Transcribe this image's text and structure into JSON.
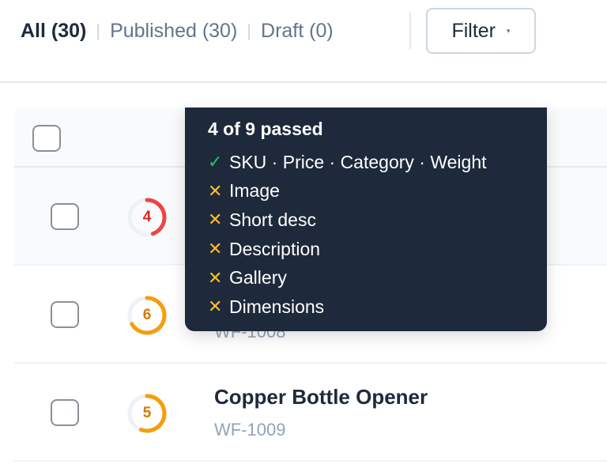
{
  "tabs": [
    {
      "label": "All (30)",
      "active": true
    },
    {
      "label": "Published (30)"
    },
    {
      "label": "Draft (0)"
    }
  ],
  "filter": {
    "label": "Filter",
    "caret": "▾"
  },
  "rows": [
    {
      "score": "4",
      "score_value": 4,
      "score_max": 9,
      "color": "#ef4444",
      "text_color": "#dc2626",
      "name": "",
      "sku": "",
      "highlighted": true
    },
    {
      "score": "6",
      "score_value": 6,
      "score_max": 9,
      "color": "#f59e0b",
      "text_color": "#d97706",
      "name": "",
      "sku": "WF-1008"
    },
    {
      "score": "5",
      "score_value": 5,
      "score_max": 9,
      "color": "#f59e0b",
      "text_color": "#d97706",
      "name": "Copper Bottle Opener",
      "sku": "WF-1009"
    }
  ],
  "tooltip": {
    "title": "4 of 9 passed",
    "passed_icon": "check-icon",
    "failed_icon": "x-icon",
    "passed": "SKU · Price · Category · Weight",
    "failed": [
      "Image",
      "Short desc",
      "Description",
      "Gallery",
      "Dimensions"
    ]
  }
}
